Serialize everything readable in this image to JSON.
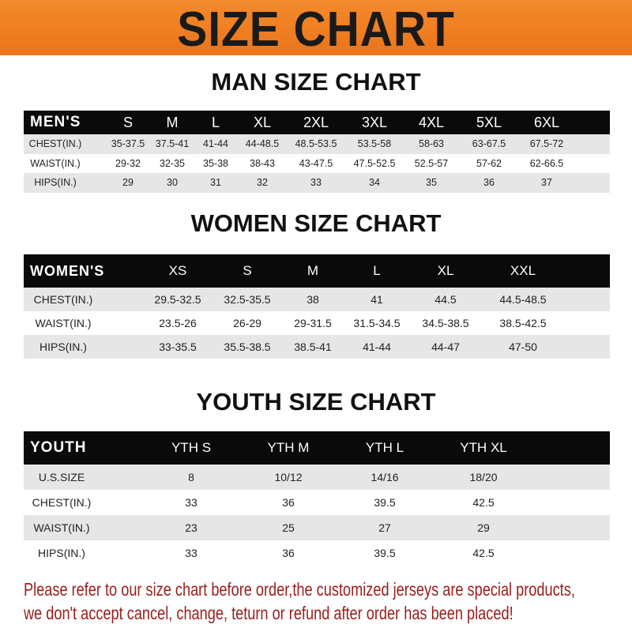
{
  "banner_title": "SIZE CHART",
  "colors": {
    "banner": "#ee7d22",
    "header_row": "#0a0a0a",
    "stripe": "#e6e6e6",
    "note_text": "#9a1d1d"
  },
  "men": {
    "title": "MAN SIZE CHART",
    "header": [
      "MEN'S",
      "S",
      "M",
      "L",
      "XL",
      "2XL",
      "3XL",
      "4XL",
      "5XL",
      "6XL"
    ],
    "rows": [
      [
        "CHEST(IN.)",
        "35-37.5",
        "37.5-41",
        "41-44",
        "44-48.5",
        "48.5-53.5",
        "53.5-58",
        "58-63",
        "63-67.5",
        "67.5-72"
      ],
      [
        "WAIST(IN.)",
        "29-32",
        "32-35",
        "35-38",
        "38-43",
        "43-47.5",
        "47.5-52.5",
        "52.5-57",
        "57-62",
        "62-66.5"
      ],
      [
        "HIPS(IN.)",
        "29",
        "30",
        "31",
        "32",
        "33",
        "34",
        "35",
        "36",
        "37"
      ]
    ]
  },
  "women": {
    "title": "WOMEN SIZE CHART",
    "header": [
      "WOMEN'S",
      "XS",
      "S",
      "M",
      "L",
      "XL",
      "XXL"
    ],
    "rows": [
      [
        "CHEST(IN.)",
        "29.5-32.5",
        "32.5-35.5",
        "38",
        "41",
        "44.5",
        "44.5-48.5"
      ],
      [
        "WAIST(IN.)",
        "23.5-26",
        "26-29",
        "29-31.5",
        "31.5-34.5",
        "34.5-38.5",
        "38.5-42.5"
      ],
      [
        "HIPS(IN.)",
        "33-35.5",
        "35.5-38.5",
        "38.5-41",
        "41-44",
        "44-47",
        "47-50"
      ]
    ]
  },
  "youth": {
    "title": "YOUTH SIZE CHART",
    "header": [
      "YOUTH",
      "YTH S",
      "YTH M",
      "YTH L",
      "YTH XL"
    ],
    "rows": [
      [
        "U.S.SIZE",
        "8",
        "10/12",
        "14/16",
        "18/20"
      ],
      [
        "CHEST(IN.)",
        "33",
        "36",
        "39.5",
        "42.5"
      ],
      [
        "WAIST(IN.)",
        "23",
        "25",
        "27",
        "29"
      ],
      [
        "HIPS(IN.)",
        "33",
        "36",
        "39.5",
        "42.5"
      ]
    ]
  },
  "note": {
    "line1": "Please refer to our size chart before order,the customized jerseys are special products,",
    "line2": "we don't accept cancel, change, teturn or refund after order has been placed!"
  }
}
